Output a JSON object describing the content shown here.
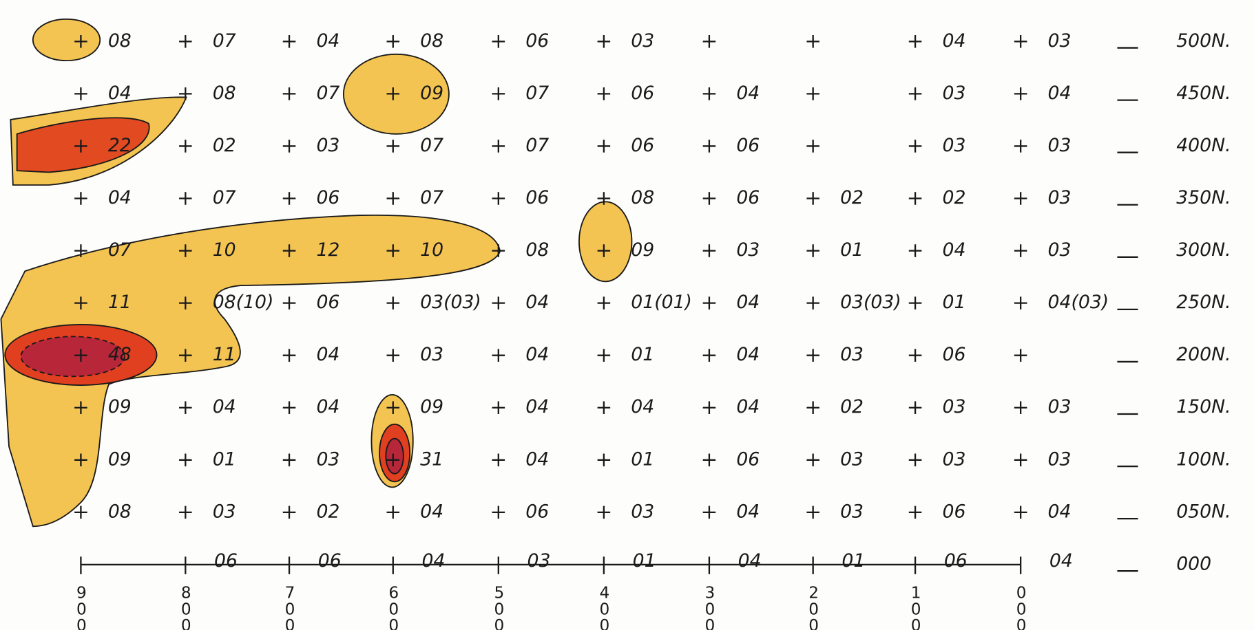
{
  "grid": {
    "columns": [
      "900",
      "800",
      "700",
      "600",
      "500",
      "400",
      "300",
      "200",
      "100",
      "000"
    ],
    "rows": [
      {
        "label": "500N.",
        "values": [
          "08",
          "07",
          "04",
          "08",
          "06",
          "03",
          null,
          null,
          "04",
          "03"
        ]
      },
      {
        "label": "450N.",
        "values": [
          "04",
          "08",
          "07",
          "09",
          "07",
          "06",
          "04",
          null,
          "03",
          "04"
        ]
      },
      {
        "label": "400N.",
        "values": [
          "22",
          "02",
          "03",
          "07",
          "07",
          "06",
          "06",
          null,
          "03",
          "03"
        ]
      },
      {
        "label": "350N.",
        "values": [
          "04",
          "07",
          "06",
          "07",
          "06",
          "08",
          "06",
          "02",
          "02",
          "03"
        ]
      },
      {
        "label": "300N.",
        "values": [
          "07",
          "10",
          "12",
          "10",
          "08",
          "09",
          "03",
          "01",
          "04",
          "03"
        ]
      },
      {
        "label": "250N.",
        "values": [
          "11",
          "08(10)",
          "06",
          "03(03)",
          "04",
          "01(01)",
          "04",
          "03(03)",
          "01",
          "04(03)"
        ]
      },
      {
        "label": "200N.",
        "values": [
          "48",
          "11",
          "04",
          "03",
          "04",
          "01",
          "04",
          "03",
          "06",
          null
        ]
      },
      {
        "label": "150N.",
        "values": [
          "09",
          "04",
          "04",
          "09",
          "04",
          "04",
          "04",
          "02",
          "03",
          "03"
        ]
      },
      {
        "label": "100N.",
        "values": [
          "09",
          "01",
          "03",
          "31",
          "04",
          "01",
          "06",
          "03",
          "03",
          "03"
        ]
      },
      {
        "label": "050N.",
        "values": [
          "08",
          "03",
          "02",
          "04",
          "06",
          "03",
          "04",
          "03",
          "06",
          "04"
        ]
      },
      {
        "label": "000",
        "values": [
          null,
          "06",
          "06",
          "04",
          "03",
          "01",
          "04",
          "01",
          "06",
          "04"
        ]
      }
    ]
  }
}
